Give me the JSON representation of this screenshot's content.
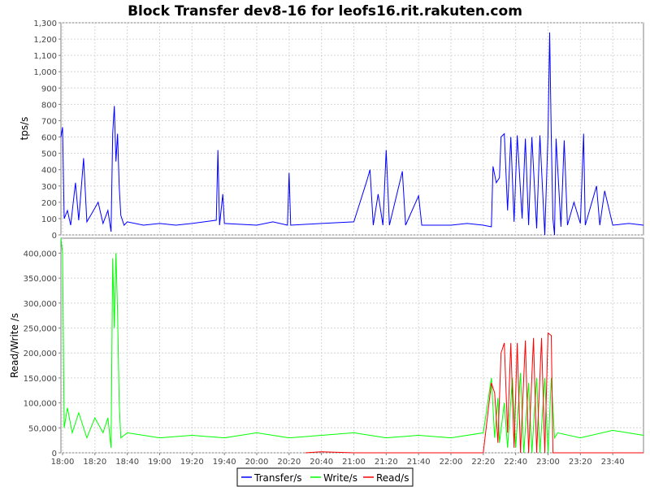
{
  "chart_data": {
    "type": "line",
    "title": "Block Transfer dev8-16 for leofs16.rit.rakuten.com",
    "x_range": [
      "17:59",
      "23:59"
    ],
    "x_ticks": [
      "18:00",
      "18:20",
      "18:40",
      "19:00",
      "19:20",
      "19:40",
      "20:00",
      "20:20",
      "20:40",
      "21:00",
      "21:20",
      "21:40",
      "22:00",
      "22:20",
      "22:40",
      "23:00",
      "23:20",
      "23:40"
    ],
    "grid": true,
    "legend_position": "bottom-center",
    "colors": {
      "transfer": "#0000ff",
      "write": "#00ff00",
      "read": "#ff0000",
      "grid": "#d6d6d6"
    },
    "panels": [
      {
        "ylabel": "tps/s",
        "ylim": [
          0,
          1300
        ],
        "y_ticks": [
          "0",
          "100",
          "200",
          "300",
          "400",
          "500",
          "600",
          "700",
          "800",
          "900",
          "1,000",
          "1,100",
          "1,200",
          "1,300"
        ],
        "y_tick_values": [
          0,
          100,
          200,
          300,
          400,
          500,
          600,
          700,
          800,
          900,
          1000,
          1100,
          1200,
          1300
        ],
        "series": [
          {
            "name": "Transfer/s",
            "color": "#0000ff",
            "points": [
              [
                "17:59",
                600
              ],
              [
                "18:00",
                660
              ],
              [
                "18:01",
                100
              ],
              [
                "18:03",
                150
              ],
              [
                "18:05",
                60
              ],
              [
                "18:08",
                320
              ],
              [
                "18:10",
                90
              ],
              [
                "18:13",
                470
              ],
              [
                "18:15",
                80
              ],
              [
                "18:18",
                130
              ],
              [
                "18:22",
                200
              ],
              [
                "18:25",
                70
              ],
              [
                "18:28",
                150
              ],
              [
                "18:30",
                20
              ],
              [
                "18:31",
                620
              ],
              [
                "18:32",
                790
              ],
              [
                "18:33",
                450
              ],
              [
                "18:34",
                620
              ],
              [
                "18:35",
                300
              ],
              [
                "18:36",
                120
              ],
              [
                "18:38",
                60
              ],
              [
                "18:40",
                80
              ],
              [
                "18:50",
                60
              ],
              [
                "19:00",
                70
              ],
              [
                "19:10",
                60
              ],
              [
                "19:20",
                70
              ],
              [
                "19:35",
                90
              ],
              [
                "19:36",
                520
              ],
              [
                "19:37",
                60
              ],
              [
                "19:39",
                250
              ],
              [
                "19:40",
                70
              ],
              [
                "20:00",
                60
              ],
              [
                "20:10",
                80
              ],
              [
                "20:19",
                60
              ],
              [
                "20:20",
                380
              ],
              [
                "20:21",
                60
              ],
              [
                "20:40",
                70
              ],
              [
                "21:00",
                80
              ],
              [
                "21:08",
                330
              ],
              [
                "21:10",
                400
              ],
              [
                "21:12",
                60
              ],
              [
                "21:15",
                250
              ],
              [
                "21:18",
                60
              ],
              [
                "21:20",
                520
              ],
              [
                "21:22",
                60
              ],
              [
                "21:30",
                390
              ],
              [
                "21:32",
                60
              ],
              [
                "21:40",
                240
              ],
              [
                "21:42",
                60
              ],
              [
                "22:00",
                60
              ],
              [
                "22:10",
                70
              ],
              [
                "22:20",
                60
              ],
              [
                "22:25",
                50
              ],
              [
                "22:26",
                420
              ],
              [
                "22:28",
                320
              ],
              [
                "22:30",
                350
              ],
              [
                "22:31",
                600
              ],
              [
                "22:33",
                620
              ],
              [
                "22:35",
                150
              ],
              [
                "22:37",
                600
              ],
              [
                "22:39",
                80
              ],
              [
                "22:41",
                610
              ],
              [
                "22:44",
                100
              ],
              [
                "22:46",
                590
              ],
              [
                "22:48",
                60
              ],
              [
                "22:50",
                600
              ],
              [
                "22:53",
                40
              ],
              [
                "22:55",
                610
              ],
              [
                "22:58",
                0
              ],
              [
                "23:00",
                620
              ],
              [
                "23:01",
                1240
              ],
              [
                "23:02",
                600
              ],
              [
                "23:03",
                100
              ],
              [
                "23:04",
                0
              ],
              [
                "23:05",
                590
              ],
              [
                "23:08",
                50
              ],
              [
                "23:10",
                580
              ],
              [
                "23:12",
                60
              ],
              [
                "23:16",
                200
              ],
              [
                "23:20",
                70
              ],
              [
                "23:22",
                620
              ],
              [
                "23:23",
                60
              ],
              [
                "23:30",
                300
              ],
              [
                "23:32",
                60
              ],
              [
                "23:35",
                270
              ],
              [
                "23:40",
                60
              ],
              [
                "23:50",
                70
              ],
              [
                "23:59",
                60
              ]
            ]
          }
        ]
      },
      {
        "ylabel": "Read/Write /s",
        "ylim": [
          0,
          430000
        ],
        "y_ticks": [
          "0",
          "50,000",
          "100,000",
          "150,000",
          "200,000",
          "250,000",
          "300,000",
          "350,000",
          "400,000"
        ],
        "y_tick_values": [
          0,
          50000,
          100000,
          150000,
          200000,
          250000,
          300000,
          350000,
          400000
        ],
        "series": [
          {
            "name": "Write/s",
            "color": "#00ff00",
            "points": [
              [
                "17:59",
                430000
              ],
              [
                "18:00",
                400000
              ],
              [
                "18:01",
                50000
              ],
              [
                "18:03",
                90000
              ],
              [
                "18:06",
                40000
              ],
              [
                "18:10",
                80000
              ],
              [
                "18:15",
                30000
              ],
              [
                "18:20",
                70000
              ],
              [
                "18:25",
                40000
              ],
              [
                "18:28",
                70000
              ],
              [
                "18:30",
                10000
              ],
              [
                "18:31",
                390000
              ],
              [
                "18:32",
                250000
              ],
              [
                "18:33",
                400000
              ],
              [
                "18:34",
                280000
              ],
              [
                "18:35",
                100000
              ],
              [
                "18:36",
                30000
              ],
              [
                "18:40",
                40000
              ],
              [
                "19:00",
                30000
              ],
              [
                "19:20",
                35000
              ],
              [
                "19:40",
                30000
              ],
              [
                "20:00",
                40000
              ],
              [
                "20:20",
                30000
              ],
              [
                "20:40",
                35000
              ],
              [
                "21:00",
                40000
              ],
              [
                "21:20",
                30000
              ],
              [
                "21:40",
                35000
              ],
              [
                "22:00",
                30000
              ],
              [
                "22:20",
                40000
              ],
              [
                "22:25",
                150000
              ],
              [
                "22:27",
                30000
              ],
              [
                "22:29",
                110000
              ],
              [
                "22:30",
                20000
              ],
              [
                "22:33",
                100000
              ],
              [
                "22:35",
                10000
              ],
              [
                "22:38",
                150000
              ],
              [
                "22:40",
                10000
              ],
              [
                "22:43",
                160000
              ],
              [
                "22:45",
                0
              ],
              [
                "22:48",
                140000
              ],
              [
                "22:50",
                0
              ],
              [
                "22:53",
                150000
              ],
              [
                "22:55",
                0
              ],
              [
                "22:58",
                150000
              ],
              [
                "23:00",
                0
              ],
              [
                "23:02",
                150000
              ],
              [
                "23:04",
                30000
              ],
              [
                "23:06",
                40000
              ],
              [
                "23:20",
                30000
              ],
              [
                "23:40",
                45000
              ],
              [
                "23:59",
                35000
              ]
            ]
          },
          {
            "name": "Read/s",
            "color": "#ff0000",
            "points": [
              [
                "20:30",
                0
              ],
              [
                "20:40",
                2000
              ],
              [
                "21:00",
                0
              ],
              [
                "22:20",
                0
              ],
              [
                "22:25",
                140000
              ],
              [
                "22:27",
                120000
              ],
              [
                "22:29",
                20000
              ],
              [
                "22:31",
                200000
              ],
              [
                "22:33",
                220000
              ],
              [
                "22:35",
                40000
              ],
              [
                "22:37",
                220000
              ],
              [
                "22:39",
                10000
              ],
              [
                "22:41",
                220000
              ],
              [
                "22:43",
                0
              ],
              [
                "22:46",
                225000
              ],
              [
                "22:48",
                0
              ],
              [
                "22:51",
                230000
              ],
              [
                "22:53",
                0
              ],
              [
                "22:56",
                230000
              ],
              [
                "22:58",
                0
              ],
              [
                "23:00",
                240000
              ],
              [
                "23:02",
                235000
              ],
              [
                "23:03",
                0
              ],
              [
                "23:04",
                0
              ],
              [
                "23:59",
                0
              ]
            ]
          }
        ]
      }
    ],
    "legend": [
      {
        "label": "Transfer/s",
        "color": "#0000ff"
      },
      {
        "label": "Write/s",
        "color": "#00ff00"
      },
      {
        "label": "Read/s",
        "color": "#ff0000"
      }
    ]
  }
}
